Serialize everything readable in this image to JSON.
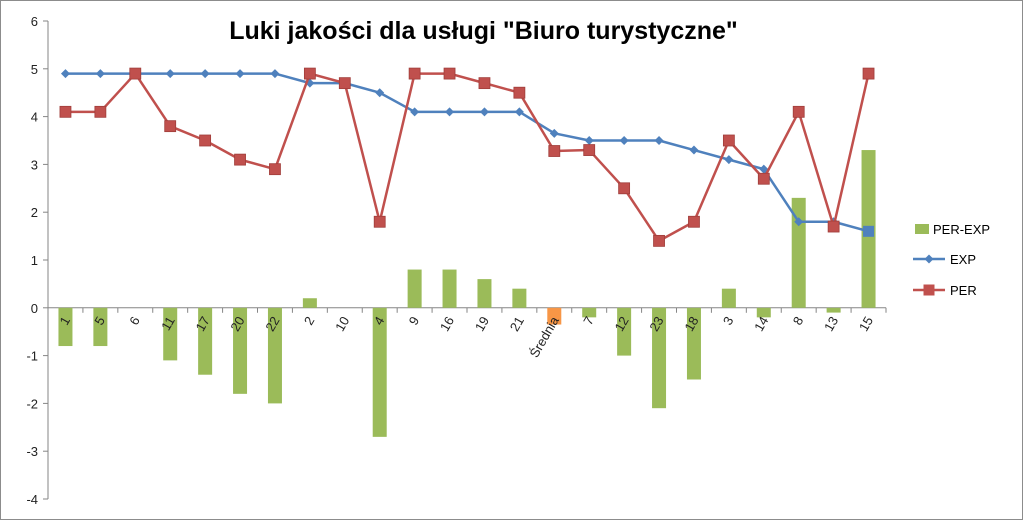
{
  "chart_data": {
    "type": "bar",
    "title": "Luki jakości dla usługi \"Biuro turystyczne\"",
    "categories": [
      "1",
      "5",
      "6",
      "11",
      "17",
      "20",
      "22",
      "2",
      "10",
      "4",
      "9",
      "16",
      "19",
      "21",
      "Średnia",
      "7",
      "12",
      "23",
      "18",
      "3",
      "14",
      "8",
      "13",
      "15"
    ],
    "ylim": [
      -4,
      6
    ],
    "yticks": [
      -4,
      -3,
      -2,
      -1,
      0,
      1,
      2,
      3,
      4,
      5,
      6
    ],
    "grid": false,
    "legend_position": "right",
    "series": [
      {
        "name": "PER-EXP",
        "kind": "bar",
        "color": "#9bbb59",
        "highlight": {
          "category": "Średnia",
          "color": "#f79646"
        },
        "values": [
          -0.8,
          -0.8,
          0,
          -1.1,
          -1.4,
          -1.8,
          -2,
          0.2,
          0,
          -2.7,
          0.8,
          0.8,
          0.6,
          0.4,
          -0.35,
          -0.2,
          -1,
          -2.1,
          -1.5,
          0.4,
          -0.2,
          2.3,
          -0.1,
          3.3
        ]
      },
      {
        "name": "EXP",
        "kind": "line",
        "marker": "diamond",
        "color": "#4f81bd",
        "values": [
          4.9,
          4.9,
          4.9,
          4.9,
          4.9,
          4.9,
          4.9,
          4.7,
          4.7,
          4.5,
          4.1,
          4.1,
          4.1,
          4.1,
          3.65,
          3.5,
          3.5,
          3.5,
          3.3,
          3.1,
          2.9,
          1.8,
          1.8,
          1.6
        ]
      },
      {
        "name": "PER",
        "kind": "line",
        "marker": "square",
        "color": "#c0504d",
        "values": [
          4.1,
          4.1,
          4.9,
          3.8,
          3.5,
          3.1,
          2.9,
          4.9,
          4.7,
          1.8,
          4.9,
          4.9,
          4.7,
          4.5,
          3.28,
          3.3,
          2.5,
          1.4,
          1.8,
          3.5,
          2.7,
          4.1,
          1.7,
          4.9
        ]
      }
    ]
  }
}
